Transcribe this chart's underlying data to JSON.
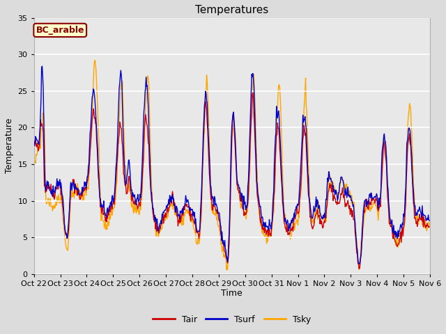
{
  "title": "Temperatures",
  "xlabel": "Time",
  "ylabel": "Temperature",
  "ylim": [
    0,
    35
  ],
  "yticks": [
    0,
    5,
    10,
    15,
    20,
    25,
    30,
    35
  ],
  "background_color": "#dcdcdc",
  "plot_bg_color": "#e8e8e8",
  "grid_color": "#ffffff",
  "tick_labels": [
    "Oct 22",
    "Oct 23",
    "Oct 24",
    "Oct 25",
    "Oct 26",
    "Oct 27",
    "Oct 28",
    "Oct 29",
    "Oct 30",
    "Oct 31",
    "Nov 1",
    "Nov 2",
    "Nov 3",
    "Nov 4",
    "Nov 5",
    "Nov 6"
  ],
  "legend_labels": [
    "Tair",
    "Tsurf",
    "Tsky"
  ],
  "legend_colors": [
    "#cc0000",
    "#0000cc",
    "#ffa500"
  ],
  "site_label": "BC_arable",
  "site_label_color": "#8b0000",
  "site_bg_color": "#ffffcc",
  "line_colors": [
    "#cc0000",
    "#0000cc",
    "#ffa500"
  ],
  "line_width": 1.0,
  "num_days": 15,
  "points_per_day": 48,
  "figsize": [
    6.4,
    4.8
  ],
  "dpi": 100
}
